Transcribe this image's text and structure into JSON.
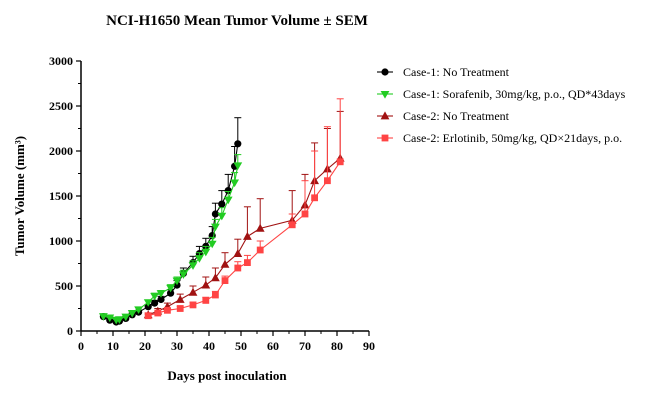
{
  "chart_data": {
    "type": "line",
    "title": "NCI-H1650 Mean Tumor Volume ± SEM",
    "xlabel": "Days post inoculation",
    "ylabel": "Tumor Volume (mm³)",
    "xlim": [
      0,
      90
    ],
    "ylim": [
      0,
      3000
    ],
    "xticks": [
      0,
      10,
      20,
      30,
      40,
      50,
      60,
      70,
      80,
      90
    ],
    "yticks": [
      0,
      500,
      1000,
      1500,
      2000,
      2500,
      3000
    ],
    "grid": false,
    "legend_position": "right",
    "series": [
      {
        "name": "Case-1: No Treatment",
        "color": "#000000",
        "marker": "circle",
        "x": [
          7,
          9,
          11,
          12,
          14,
          16,
          18,
          21,
          23,
          25,
          28,
          30,
          32,
          35,
          37,
          39,
          41,
          42,
          44,
          46,
          48,
          49
        ],
        "y": [
          160,
          120,
          100,
          110,
          140,
          180,
          210,
          270,
          310,
          350,
          420,
          510,
          640,
          760,
          860,
          940,
          1060,
          1300,
          1410,
          1560,
          1830,
          2080
        ],
        "err": [
          20,
          15,
          15,
          15,
          20,
          20,
          20,
          25,
          30,
          35,
          40,
          50,
          60,
          70,
          80,
          90,
          100,
          120,
          150,
          180,
          220,
          290
        ]
      },
      {
        "name": "Case-1: Sorafenib, 30mg/kg, p.o., QD*43days",
        "color": "#22cc22",
        "marker": "triangle-down",
        "x": [
          7,
          9,
          11,
          12,
          14,
          16,
          18,
          21,
          23,
          25,
          28,
          30,
          32,
          35,
          37,
          39,
          41,
          42,
          44,
          46,
          48,
          49
        ],
        "y": [
          165,
          150,
          125,
          130,
          160,
          200,
          240,
          320,
          390,
          420,
          480,
          560,
          630,
          730,
          810,
          880,
          970,
          1160,
          1280,
          1460,
          1650,
          1840
        ],
        "err": [
          15,
          15,
          10,
          15,
          15,
          20,
          20,
          25,
          30,
          30,
          35,
          40,
          45,
          50,
          60,
          60,
          70,
          80,
          90,
          90,
          110,
          120
        ]
      },
      {
        "name": "Case-2: No Treatment",
        "color": "#a11212",
        "marker": "triangle-up",
        "x": [
          21,
          24,
          27,
          31,
          35,
          39,
          42,
          45,
          49,
          52,
          56,
          66,
          70,
          73,
          77,
          81
        ],
        "y": [
          180,
          220,
          270,
          350,
          430,
          510,
          590,
          740,
          860,
          1050,
          1140,
          1230,
          1400,
          1670,
          1800,
          1920
        ],
        "err": [
          20,
          30,
          40,
          60,
          70,
          90,
          110,
          130,
          160,
          330,
          330,
          330,
          340,
          420,
          450,
          520
        ]
      },
      {
        "name": "Case-2: Erlotinib, 50mg/kg, QD×21days, p.o.",
        "color": "#ff4444",
        "marker": "square",
        "x": [
          21,
          24,
          27,
          31,
          35,
          39,
          42,
          45,
          49,
          52,
          56,
          66,
          70,
          73,
          77,
          81
        ],
        "y": [
          170,
          200,
          230,
          250,
          290,
          340,
          400,
          560,
          700,
          760,
          900,
          1180,
          1300,
          1480,
          1670,
          1880
        ],
        "err": [
          15,
          15,
          20,
          25,
          30,
          35,
          40,
          50,
          70,
          80,
          100,
          120,
          370,
          520,
          600,
          700
        ]
      }
    ]
  }
}
